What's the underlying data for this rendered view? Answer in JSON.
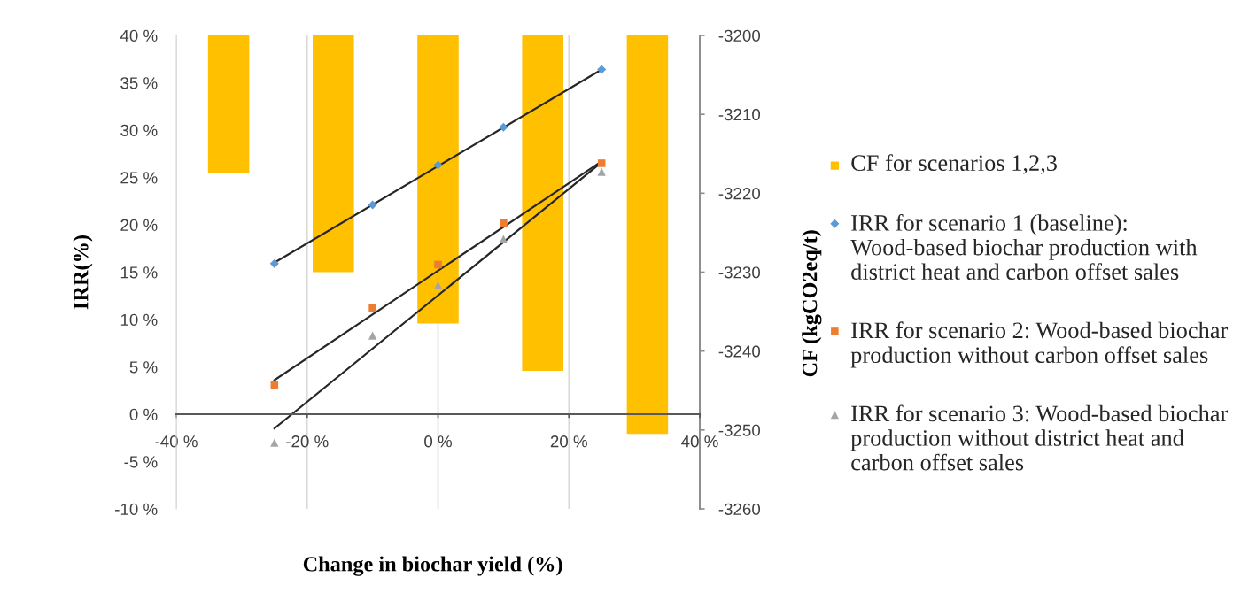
{
  "chart_data": {
    "type": "scatter",
    "xlabel": "Change in biochar yield (%)",
    "ylabel": "IRR(%)",
    "y2label": "CF (kgCO2eq/t)",
    "xlim": [
      -40,
      40
    ],
    "xticks": [
      {
        "value": -40,
        "label": "-40 %"
      },
      {
        "value": -20,
        "label": "-20 %"
      },
      {
        "value": 0,
        "label": "0 %"
      },
      {
        "value": 20,
        "label": "20 %"
      },
      {
        "value": 40,
        "label": "40 %"
      }
    ],
    "ylim": [
      -10,
      40
    ],
    "yticks": [
      {
        "value": -10,
        "label": "-10 %"
      },
      {
        "value": -5,
        "label": "-5 %"
      },
      {
        "value": 0,
        "label": "0 %"
      },
      {
        "value": 5,
        "label": "5 %"
      },
      {
        "value": 10,
        "label": "10 %"
      },
      {
        "value": 15,
        "label": "15 %"
      },
      {
        "value": 20,
        "label": "20 %"
      },
      {
        "value": 25,
        "label": "25 %"
      },
      {
        "value": 30,
        "label": "30 %"
      },
      {
        "value": 35,
        "label": "35 %"
      },
      {
        "value": 40,
        "label": "40 %"
      }
    ],
    "y2lim": [
      -3260,
      -3200
    ],
    "y2ticks": [
      -3260,
      -3250,
      -3240,
      -3230,
      -3220,
      -3210,
      -3200
    ],
    "grid": "x",
    "legend": "right",
    "series": [
      {
        "type": "bar",
        "name": "CF for scenarios 1,2,3",
        "color": "#ffc000",
        "axis": "y2",
        "x": [
          -32,
          -16,
          0,
          16,
          32
        ],
        "values": [
          -3217.5,
          -3230,
          -3236.5,
          -3242.5,
          -3250.5
        ]
      },
      {
        "name": "IRR for scenario 1 (baseline): Wood-based biochar production with district heat and carbon offset sales",
        "color": "#5b9bd5",
        "marker": "diamond",
        "x": [
          -25,
          -10,
          0,
          10,
          25
        ],
        "values": [
          15.9,
          22.1,
          26.3,
          30.3,
          36.4
        ]
      },
      {
        "name": "IRR for scenario 2: Wood-based biochar production without carbon offset sales",
        "color": "#ed7d31",
        "marker": "square",
        "x": [
          -25,
          -10,
          0,
          10,
          25
        ],
        "values": [
          3.1,
          11.2,
          15.8,
          20.2,
          26.5
        ]
      },
      {
        "name": "IRR for scenario 3: Wood-based biochar production without district heat and carbon offset sales",
        "color": "#a5a5a5",
        "marker": "triangle",
        "x": [
          -25,
          -10,
          0,
          10,
          25
        ],
        "values": [
          -3.0,
          8.3,
          13.6,
          18.5,
          25.6
        ]
      },
      {
        "type": "line",
        "color": "#262626",
        "x": [
          -25,
          25
        ],
        "values": [
          16.0,
          36.4
        ]
      },
      {
        "type": "line",
        "color": "#262626",
        "x": [
          -25,
          25
        ],
        "values": [
          3.6,
          26.7
        ]
      },
      {
        "type": "line",
        "color": "#262626",
        "x": [
          -25,
          25
        ],
        "values": [
          -1.5,
          26.6
        ]
      }
    ]
  }
}
